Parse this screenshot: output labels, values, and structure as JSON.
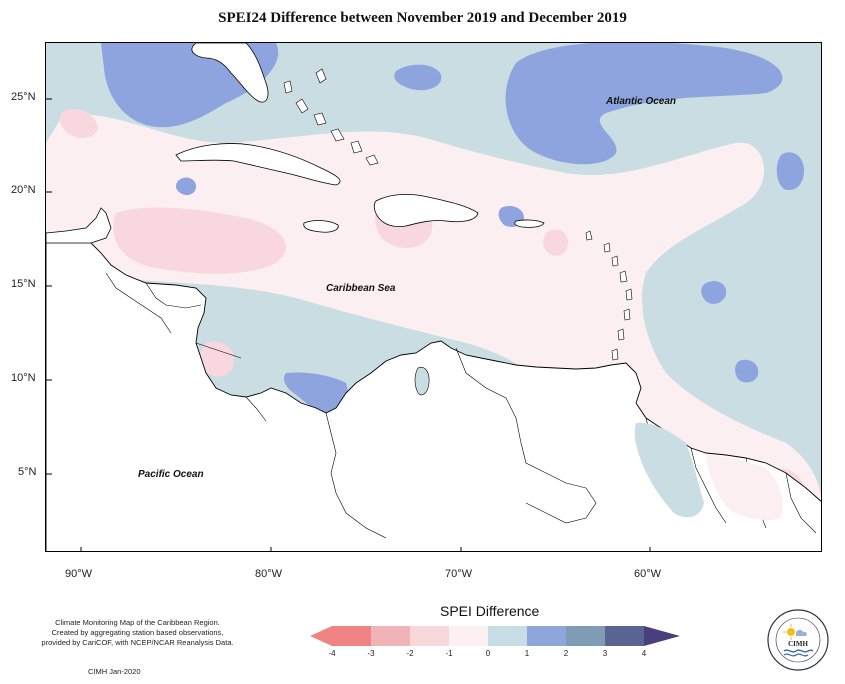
{
  "title": "SPEI24 Difference between November 2019 and December 2019",
  "labels": {
    "atlantic": "Atlantic Ocean",
    "caribbean": "Caribbean Sea",
    "pacific": "Pacific Ocean"
  },
  "lat_ticks": [
    "25°N",
    "20°N",
    "15°N",
    "10°N",
    "5°N"
  ],
  "lon_ticks": [
    "90°W",
    "80°W",
    "70°W",
    "60°W"
  ],
  "credit_lines": [
    "Climate Monitoring Map of the Caribbean Region.",
    "Created by aggregating station based observations,",
    "provided by CariCOF, with NCEP/NCAR Reanalysis Data."
  ],
  "credit_date": "CIMH Jan-2020",
  "legend": {
    "title": "SPEI Difference",
    "ticks": [
      "-4",
      "-3",
      "-2",
      "-1",
      "0",
      "1",
      "2",
      "3",
      "4"
    ],
    "colors": [
      "#f08484",
      "#f0b4b8",
      "#f8d8dc",
      "#fdf0f0",
      "#c8dde4",
      "#8fa6dc",
      "#7f9cb4",
      "#5a6492"
    ]
  },
  "colors": {
    "land": "#ffffff",
    "coast": "#000000",
    "light_blue": "#c9dde3",
    "medium_blue": "#8ea4de",
    "light_pink": "#fceff1",
    "pink": "#f8d8de"
  },
  "logo": {
    "org": "CIMH",
    "ring_text": "Caribbean Institute for Meteorology and Hydrology"
  }
}
